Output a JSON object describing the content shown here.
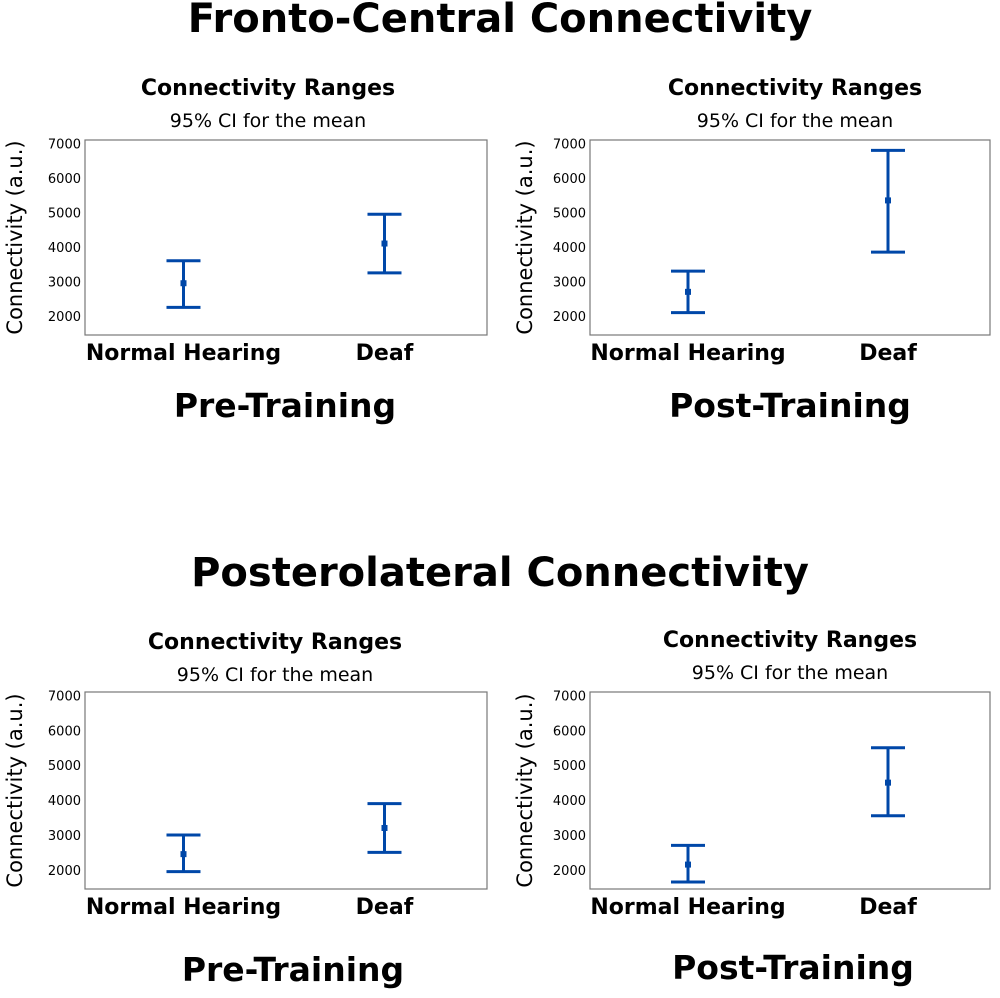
{
  "sections": [
    {
      "title": "Fronto-Central Connectivity"
    },
    {
      "title": "Posterolateral Connectivity"
    }
  ],
  "panels": [
    {
      "stage": "Pre-Training"
    },
    {
      "stage": "Post-Training"
    },
    {
      "stage": "Pre-Training"
    },
    {
      "stage": "Post-Training"
    }
  ],
  "colors": {
    "errorbar": "#0047a8",
    "frame": "#777777"
  },
  "chart_data": [
    {
      "type": "errorbar",
      "title": "Connectivity Ranges",
      "subtitle": "95% CI for the mean",
      "ylabel": "Connectivity (a.u.)",
      "xlabel": "Pre-Training",
      "categories": [
        "Normal Hearing",
        "Deaf"
      ],
      "ylim": [
        1450,
        7100
      ],
      "yticks": [
        "2000",
        "3000",
        "4000",
        "5000",
        "6000",
        "7000"
      ],
      "mean": [
        2950,
        4100
      ],
      "lower": [
        2250,
        3250
      ],
      "upper": [
        3600,
        4950
      ],
      "grid": false
    },
    {
      "type": "errorbar",
      "title": "Connectivity Ranges",
      "subtitle": "95% CI for the mean",
      "ylabel": "Connectivity (a.u.)",
      "xlabel": "Post-Training",
      "categories": [
        "Normal Hearing",
        "Deaf"
      ],
      "ylim": [
        1450,
        7100
      ],
      "yticks": [
        "2000",
        "3000",
        "4000",
        "5000",
        "6000",
        "7000"
      ],
      "mean": [
        2700,
        5350
      ],
      "lower": [
        2100,
        3850
      ],
      "upper": [
        3300,
        6800
      ],
      "grid": false
    },
    {
      "type": "errorbar",
      "title": "Connectivity Ranges",
      "subtitle": "95% CI for the mean",
      "ylabel": "Connectivity (a.u.)",
      "xlabel": "Pre-Training",
      "categories": [
        "Normal Hearing",
        "Deaf"
      ],
      "ylim": [
        1450,
        7100
      ],
      "yticks": [
        "2000",
        "3000",
        "4000",
        "5000",
        "6000",
        "7000"
      ],
      "mean": [
        2450,
        3200
      ],
      "lower": [
        1950,
        2500
      ],
      "upper": [
        3000,
        3900
      ],
      "grid": false
    },
    {
      "type": "errorbar",
      "title": "Connectivity Ranges",
      "subtitle": "95% CI for the mean",
      "ylabel": "Connectivity (a.u.)",
      "xlabel": "Post-Training",
      "categories": [
        "Normal Hearing",
        "Deaf"
      ],
      "ylim": [
        1450,
        7100
      ],
      "yticks": [
        "2000",
        "3000",
        "4000",
        "5000",
        "6000",
        "7000"
      ],
      "mean": [
        2150,
        4500
      ],
      "lower": [
        1650,
        3550
      ],
      "upper": [
        2700,
        5500
      ],
      "grid": false
    }
  ]
}
